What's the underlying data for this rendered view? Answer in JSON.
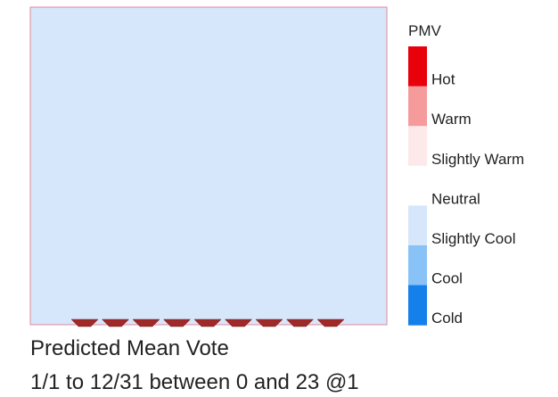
{
  "legend": {
    "title": "PMV",
    "items": [
      {
        "label": "Hot",
        "color": "#e8000b"
      },
      {
        "label": "Warm",
        "color": "#f59b9b"
      },
      {
        "label": "Slightly Warm",
        "color": "#fde9e9"
      },
      {
        "label": "Neutral",
        "color": "#ffffff"
      },
      {
        "label": "Slightly Cool",
        "color": "#d6e6fb"
      },
      {
        "label": "Cool",
        "color": "#88c2f6"
      },
      {
        "label": "Cold",
        "color": "#1580ea"
      }
    ]
  },
  "plot": {
    "color": "#d6e6fb"
  },
  "caption": {
    "line1": "Predicted Mean Vote",
    "line2": "1/1 to 12/31 between 0 and 23 @1"
  }
}
